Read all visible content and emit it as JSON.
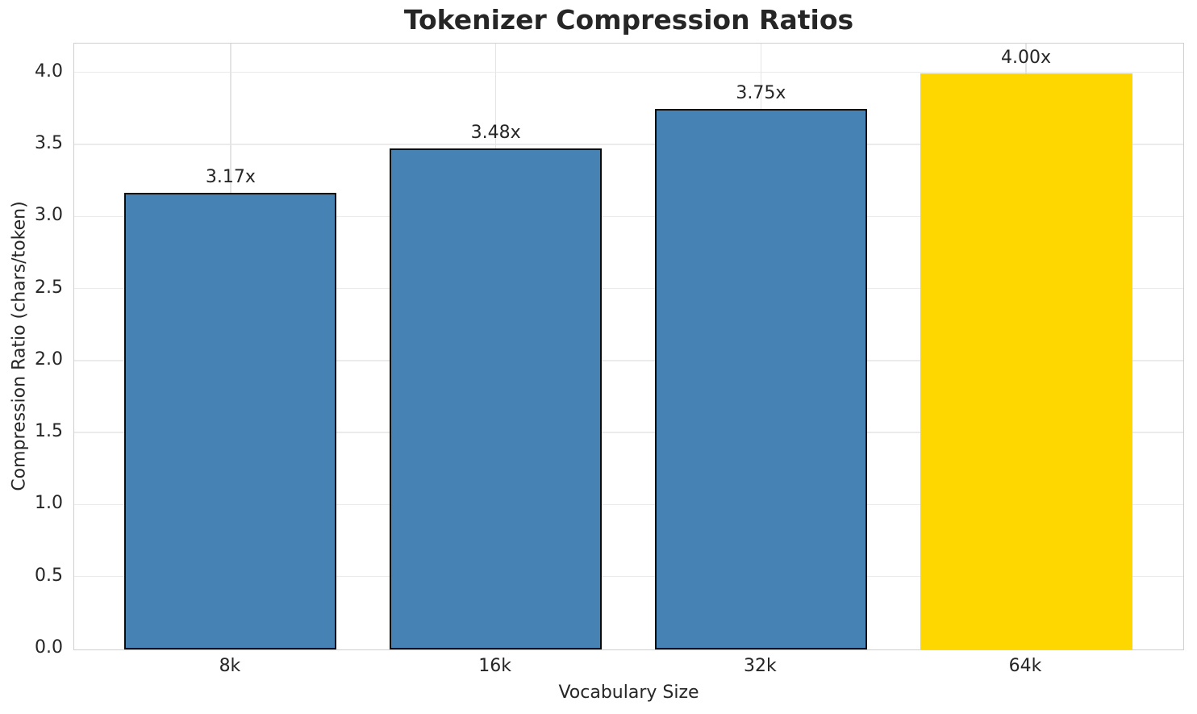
{
  "chart_data": {
    "type": "bar",
    "title": "Tokenizer Compression Ratios",
    "xlabel": "Vocabulary Size",
    "ylabel": "Compression Ratio (chars/token)",
    "categories": [
      "8k",
      "16k",
      "32k",
      "64k"
    ],
    "values": [
      3.17,
      3.48,
      3.75,
      4.0
    ],
    "bar_labels": [
      "3.17x",
      "3.48x",
      "3.75x",
      "4.00x"
    ],
    "ytick_labels": [
      "0.0",
      "0.5",
      "1.0",
      "1.5",
      "2.0",
      "2.5",
      "3.0",
      "3.5",
      "4.0"
    ],
    "ytick_values": [
      0,
      0.5,
      1.0,
      1.5,
      2.0,
      2.5,
      3.0,
      3.5,
      4.0
    ],
    "ylim": [
      0,
      4.2
    ],
    "grid": true,
    "legend_position": "none",
    "highlight_index": 3,
    "bar_colors": [
      "#4682B4",
      "#4682B4",
      "#4682B4",
      "#FFD700"
    ],
    "bar_edges": [
      true,
      true,
      true,
      false
    ],
    "colors": {
      "bar_default": "#4682B4",
      "bar_highlight": "#FFD700",
      "bar_edge": "#0c0c0c",
      "grid": "#ebebeb",
      "spine": "#cfcfcf",
      "text": "#262626"
    }
  }
}
